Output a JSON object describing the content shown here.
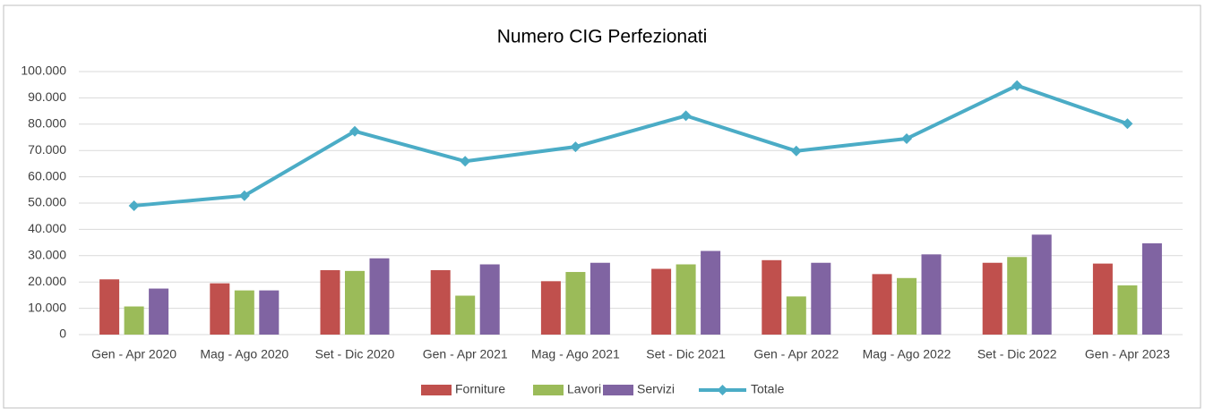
{
  "chart_data": {
    "type": "bar",
    "title": "Numero CIG Perfezionati",
    "categories": [
      "Gen - Apr 2020",
      "Mag - Ago 2020",
      "Set - Dic 2020",
      "Gen - Apr 2021",
      "Mag - Ago 2021",
      "Set - Dic 2021",
      "Gen - Apr 2022",
      "Mag - Ago 2022",
      "Set - Dic 2022",
      "Gen - Apr 2023"
    ],
    "series": [
      {
        "name": "Forniture",
        "type": "bar",
        "color": "#c0504d",
        "values": [
          21000,
          19500,
          24500,
          24500,
          20300,
          25000,
          28300,
          23000,
          27300,
          27000
        ]
      },
      {
        "name": "Lavori",
        "type": "bar",
        "color": "#9bbb59",
        "values": [
          10700,
          16800,
          24200,
          14800,
          23800,
          26700,
          14500,
          21500,
          29500,
          18700
        ]
      },
      {
        "name": "Servizi",
        "type": "bar",
        "color": "#8064a2",
        "values": [
          17500,
          16800,
          29000,
          26700,
          27300,
          31800,
          27300,
          30500,
          38000,
          34700
        ]
      },
      {
        "name": "Totale",
        "type": "line",
        "color": "#4bacc6",
        "values": [
          49000,
          52800,
          77300,
          65900,
          71400,
          83200,
          69800,
          74500,
          94700,
          80200
        ]
      }
    ],
    "ylim": [
      0,
      100000
    ],
    "yticks": [
      0,
      {
        "value": 10000,
        "label": "10.000"
      },
      {
        "value": 20000,
        "label": "20.000"
      },
      {
        "value": 30000,
        "label": "30.000"
      },
      {
        "value": 40000,
        "label": "40.000"
      },
      {
        "value": 50000,
        "label": "50.000"
      },
      {
        "value": 60000,
        "label": "60.000"
      },
      {
        "value": 70000,
        "label": "70.000"
      },
      {
        "value": 80000,
        "label": "80.000"
      },
      {
        "value": 90000,
        "label": "90.000"
      },
      {
        "value": 100000,
        "label": "100.000"
      }
    ],
    "grid": true,
    "legend": "bottom"
  }
}
